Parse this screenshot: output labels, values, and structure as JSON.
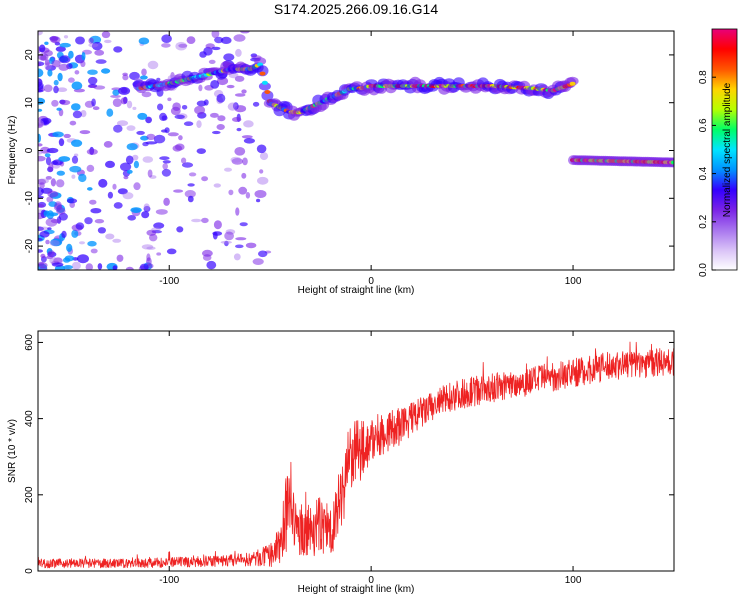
{
  "title": "S174.2025.266.09.16.G14",
  "colors": {
    "axis": "#000000",
    "snr_line": "#ee2222",
    "colormap": [
      "#ffffff",
      "#d9c2f7",
      "#a774ee",
      "#7a22e6",
      "#3300ff",
      "#0094ff",
      "#00e5ff",
      "#00ff66",
      "#b7ff00",
      "#ffd400",
      "#ff5500",
      "#ff0000",
      "#e8007a"
    ]
  },
  "chart_data": [
    {
      "type": "heatmap",
      "xlabel": "Height of straight line (km)",
      "ylabel": "Frequency (Hz)",
      "xlim": [
        -165,
        150
      ],
      "ylim": [
        -25,
        25
      ],
      "xticks": [
        -100,
        0,
        100
      ],
      "yticks": [
        -20,
        -10,
        0,
        10,
        20
      ],
      "ridge": {
        "x": [
          -115,
          -100,
          -90,
          -80,
          -70,
          -60,
          -55,
          -50,
          -45,
          -40,
          -35,
          -30,
          -25,
          -20,
          -15,
          -10,
          -5,
          0,
          10,
          20,
          40,
          60,
          80,
          90,
          100
        ],
        "y": [
          13,
          14,
          15,
          16,
          17,
          17,
          18,
          10,
          9,
          8,
          8,
          9,
          10,
          11,
          12,
          13,
          13,
          13.5,
          13.5,
          13.5,
          13.5,
          13.5,
          13,
          12.5,
          14
        ]
      },
      "band2": {
        "x": [
          100,
          150
        ],
        "y": [
          -2,
          -2.5
        ]
      },
      "colorbar": {
        "label": "Normalized spectral amplitude",
        "range": [
          0,
          1
        ],
        "ticks": [
          0.0,
          0.2,
          0.4,
          0.6,
          0.8
        ]
      }
    },
    {
      "type": "line",
      "xlabel": "Height of straight line (km)",
      "ylabel": "SNR (10 * v/v)",
      "xlim": [
        -165,
        150
      ],
      "ylim": [
        0,
        630
      ],
      "xticks": [
        -100,
        0,
        100
      ],
      "yticks": [
        0,
        200,
        400,
        600
      ],
      "envelope": {
        "x": [
          -165,
          -120,
          -80,
          -60,
          -50,
          -45,
          -42,
          -40,
          -38,
          -35,
          -30,
          -25,
          -20,
          -17,
          -15,
          -12,
          -10,
          -5,
          0,
          5,
          10,
          15,
          20,
          30,
          40,
          60,
          80,
          100,
          120,
          150
        ],
        "y": [
          20,
          20,
          25,
          30,
          40,
          70,
          150,
          200,
          120,
          100,
          110,
          120,
          110,
          150,
          200,
          260,
          300,
          320,
          340,
          360,
          370,
          380,
          400,
          430,
          460,
          480,
          500,
          520,
          540,
          550
        ],
        "noise": [
          12,
          12,
          14,
          18,
          30,
          50,
          120,
          110,
          70,
          60,
          70,
          80,
          70,
          80,
          90,
          100,
          90,
          80,
          60,
          60,
          55,
          50,
          45,
          40,
          40,
          38,
          38,
          38,
          38,
          38
        ]
      }
    }
  ]
}
